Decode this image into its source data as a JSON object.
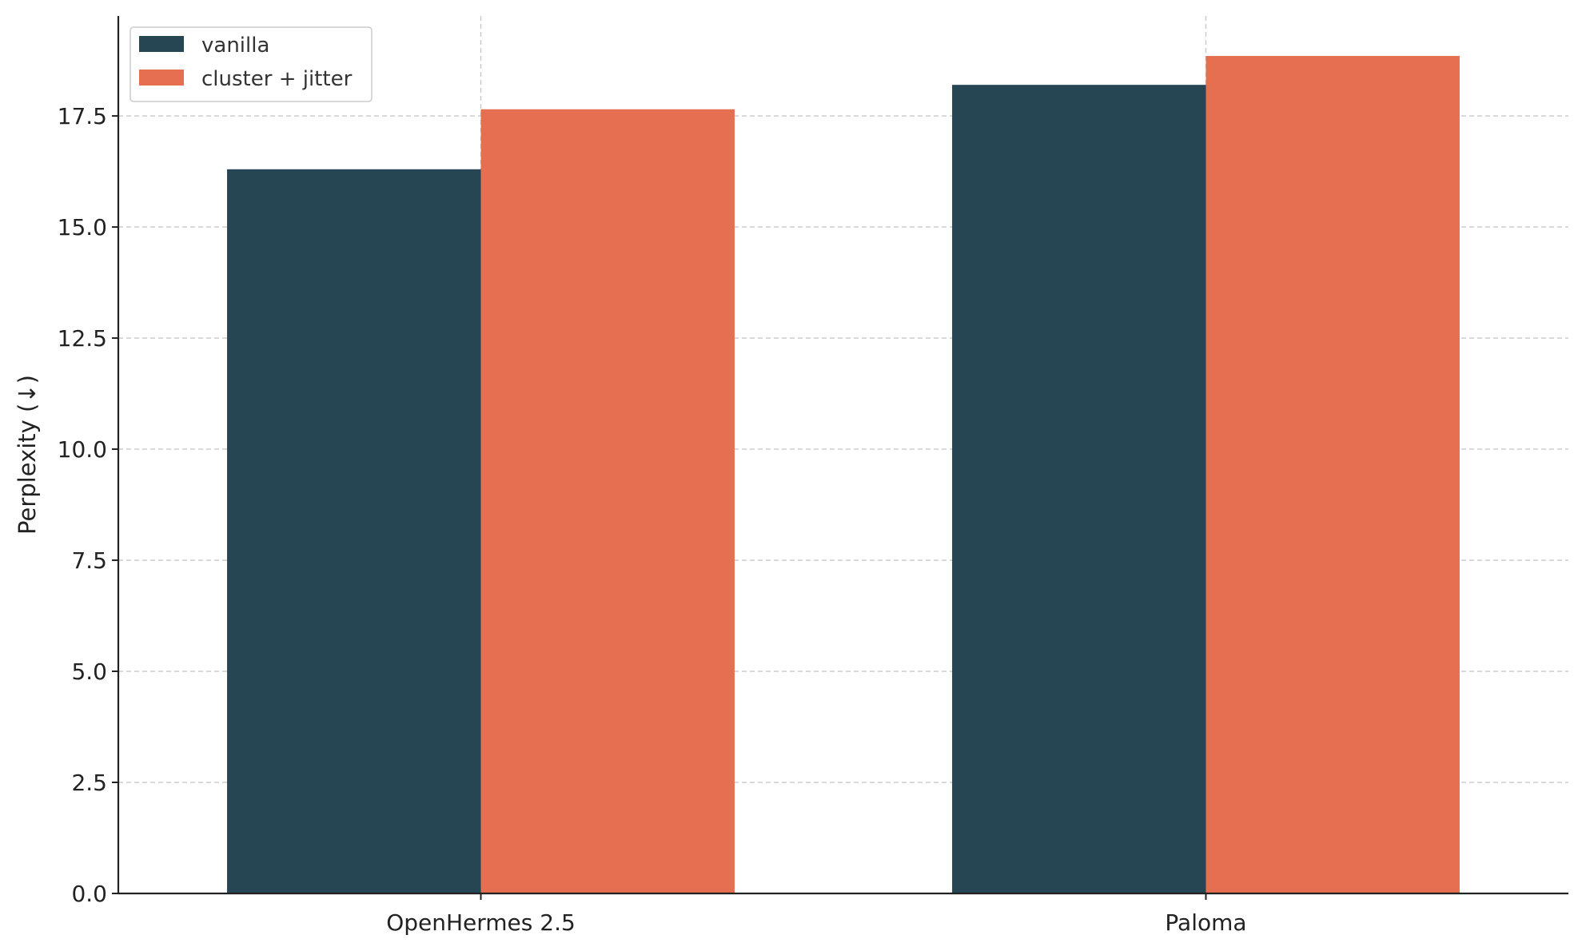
{
  "chart_data": {
    "type": "bar",
    "title": "",
    "xlabel": "",
    "ylabel": "Perplexity (↓)",
    "categories": [
      "OpenHermes 2.5",
      "Paloma"
    ],
    "series": [
      {
        "name": "vanilla",
        "color": "#264653",
        "values": [
          16.3,
          18.2
        ]
      },
      {
        "name": "cluster + jitter",
        "color": "#e76f51",
        "values": [
          17.65,
          18.85
        ]
      }
    ],
    "ylim": [
      0,
      19.75
    ],
    "yticks": [
      0,
      2.5,
      5,
      7.5,
      10,
      12.5,
      15,
      17.5
    ],
    "ytick_labels": [
      "0.0",
      "2.5",
      "5.0",
      "7.5",
      "10.0",
      "12.5",
      "15.0",
      "17.5"
    ],
    "grid": true,
    "legend_position": "top-left"
  }
}
